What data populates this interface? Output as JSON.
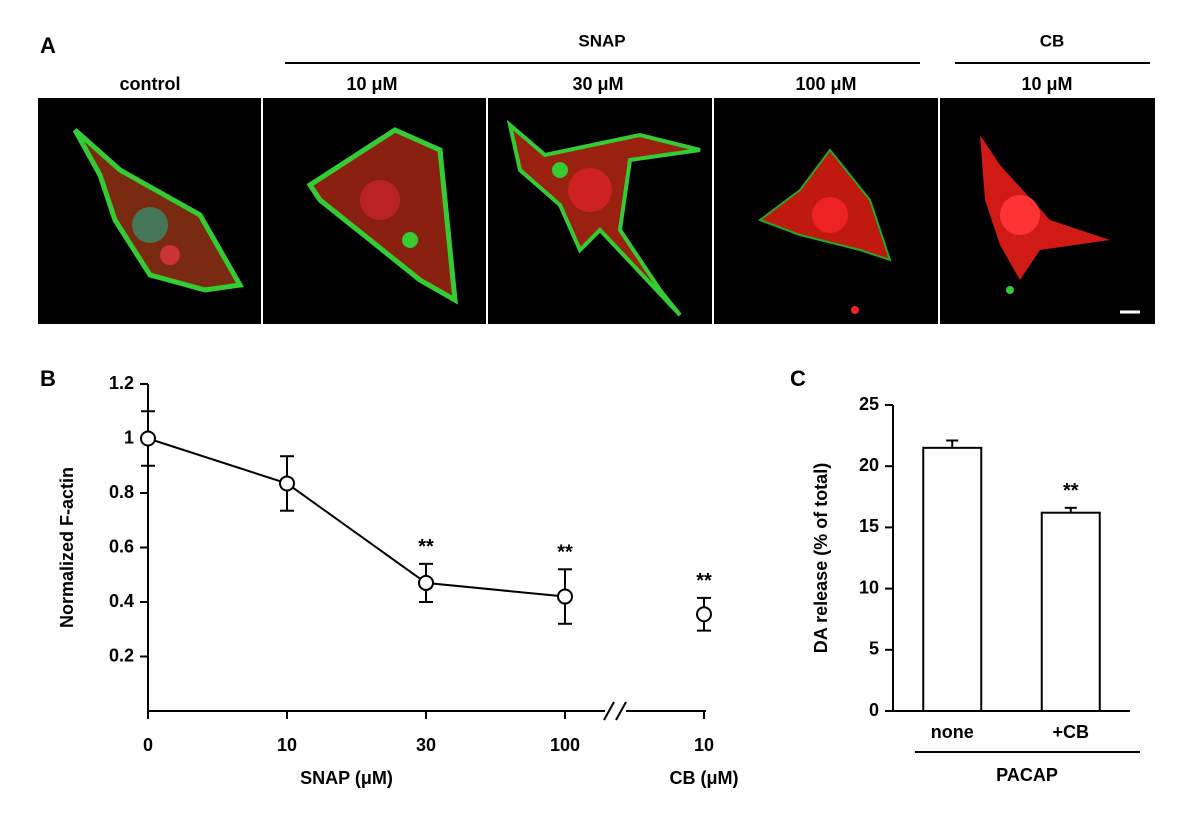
{
  "panel_a": {
    "letter": "A",
    "groups": [
      {
        "label": "SNAP"
      },
      {
        "label": "CB"
      }
    ],
    "images": [
      {
        "label": "control"
      },
      {
        "label": "10 μM"
      },
      {
        "label": "30 μM"
      },
      {
        "label": "100 μM"
      },
      {
        "label": "10 μM"
      }
    ]
  },
  "chart_data": [
    {
      "type": "line",
      "letter": "B",
      "ylabel": "Normalized F-actin",
      "ylim": [
        0,
        1.2
      ],
      "yticks": [
        0.2,
        0.4,
        0.6,
        0.8,
        1,
        1.2
      ],
      "groups": [
        {
          "label": "SNAP (μM)",
          "categories": [
            "0",
            "10",
            "30",
            "100"
          ],
          "values": [
            1,
            0.835,
            0.47,
            0.42
          ],
          "errors": [
            0.1,
            0.1,
            0.07,
            0.1
          ],
          "annotations": [
            null,
            null,
            "**",
            "**"
          ]
        },
        {
          "label": "CB (μM)",
          "categories": [
            "10"
          ],
          "values": [
            0.355
          ],
          "errors": [
            0.06
          ],
          "annotations": [
            "**"
          ]
        }
      ]
    },
    {
      "type": "bar",
      "letter": "C",
      "ylabel": "DA release (% of total)",
      "group_label": "PACAP",
      "ylim": [
        0,
        25
      ],
      "yticks": [
        0,
        5,
        10,
        15,
        20,
        25
      ],
      "categories": [
        "none",
        "+CB"
      ],
      "values": [
        21.5,
        16.2
      ],
      "errors": [
        0.6,
        0.4
      ],
      "annotations": [
        null,
        "**"
      ]
    }
  ]
}
